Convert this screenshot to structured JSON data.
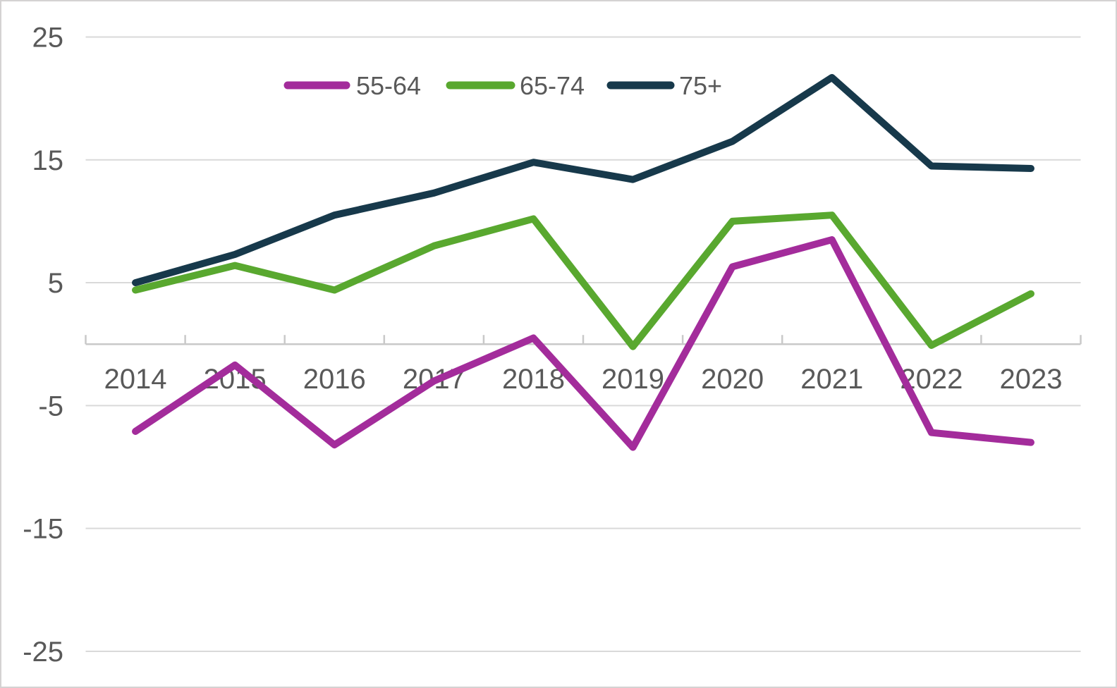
{
  "chart_data": {
    "type": "line",
    "title": "",
    "xlabel": "",
    "ylabel": "",
    "x": [
      "2014",
      "2015",
      "2016",
      "2017",
      "2018",
      "2019",
      "2020",
      "2021",
      "2022",
      "2023"
    ],
    "series": [
      {
        "name": "55-64",
        "color": "#a32c9b",
        "values": [
          -7.1,
          -1.7,
          -8.2,
          -3.0,
          0.5,
          -8.4,
          6.3,
          8.5,
          -7.2,
          -8.0
        ]
      },
      {
        "name": "65-74",
        "color": "#59a82f",
        "values": [
          4.4,
          6.4,
          4.4,
          8.0,
          10.2,
          -0.2,
          10.0,
          10.5,
          -0.1,
          4.1
        ]
      },
      {
        "name": "75+",
        "color": "#17394b",
        "values": [
          5.0,
          7.3,
          10.5,
          12.3,
          14.8,
          13.4,
          16.5,
          21.7,
          14.5,
          14.3
        ]
      }
    ],
    "ylim": [
      -25,
      25
    ],
    "yticks": [
      25,
      15,
      5,
      -5,
      -15,
      -25
    ],
    "grid": true,
    "legend_position": "top",
    "grid_color": "#d9d9d9",
    "axis_color": "#c9c9c9",
    "text_color": "#595959",
    "background_color": "#ffffff"
  }
}
